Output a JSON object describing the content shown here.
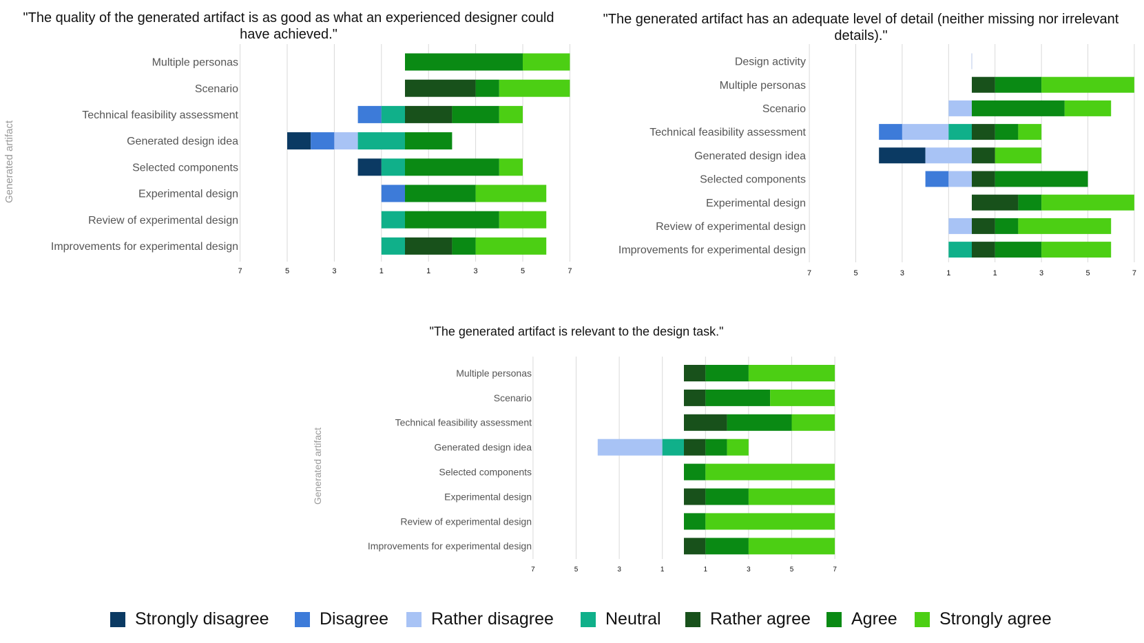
{
  "colors": {
    "Strongly disagree": "#0b3a63",
    "Disagree": "#3d7bd9",
    "Rather disagree": "#a8c3f5",
    "Neutral": "#10b08a",
    "Rather agree": "#18511b",
    "Agree": "#0a8a14",
    "Strongly agree": "#4ccf14"
  },
  "legend": [
    "Strongly disagree",
    "Disagree",
    "Rather disagree",
    "Neutral",
    "Rather agree",
    "Agree",
    "Strongly agree"
  ],
  "chart_data": [
    {
      "type": "bar",
      "orientation": "horizontal",
      "stacking": "diverging",
      "title": "\"The quality of the generated artifact is as good as what an experienced designer could have achieved.\"",
      "title_lines": [
        "\"The quality of the generated artifact is as good as what an experienced designer could",
        "have achieved.\""
      ],
      "ylabel": "Generated artifact",
      "xlabel": "",
      "xticks": [
        "7",
        "5",
        "3",
        "1",
        "1",
        "3",
        "5",
        "7"
      ],
      "xlim": [
        -7,
        7
      ],
      "categories": [
        "Multiple personas",
        "Scenario",
        "Technical feasibility assessment",
        "Generated design idea",
        "Selected components",
        "Experimental design",
        "Review of experimental design",
        "Improvements for experimental design"
      ],
      "series": [
        {
          "name": "Strongly disagree",
          "values": [
            0,
            0,
            0,
            1,
            1,
            0,
            0,
            0
          ]
        },
        {
          "name": "Disagree",
          "values": [
            0,
            0,
            1,
            1,
            0,
            1,
            0,
            0
          ]
        },
        {
          "name": "Rather disagree",
          "values": [
            0,
            0,
            0,
            1,
            0,
            0,
            0,
            0
          ]
        },
        {
          "name": "Neutral",
          "values": [
            0,
            0,
            1,
            2,
            1,
            0,
            1,
            1
          ]
        },
        {
          "name": "Rather agree",
          "values": [
            0,
            3,
            2,
            0,
            0,
            0,
            0,
            2
          ]
        },
        {
          "name": "Agree",
          "values": [
            5,
            1,
            2,
            2,
            4,
            3,
            4,
            1
          ]
        },
        {
          "name": "Strongly agree",
          "values": [
            2,
            3,
            1,
            0,
            1,
            3,
            2,
            3
          ]
        }
      ]
    },
    {
      "type": "bar",
      "orientation": "horizontal",
      "stacking": "diverging",
      "title": "\"The generated artifact has an adequate level of detail (neither missing nor irrelevant details).\"",
      "title_lines": [
        "\"The generated artifact has an adequate level of detail (neither missing nor irrelevant",
        "details).\""
      ],
      "ylabel": "",
      "xlabel": "",
      "xticks": [
        "7",
        "5",
        "3",
        "1",
        "1",
        "3",
        "5",
        "7"
      ],
      "xlim": [
        -7,
        7
      ],
      "categories": [
        "Design activity",
        "Multiple personas",
        "Scenario",
        "Technical feasibility assessment",
        "Generated design idea",
        "Selected components",
        "Experimental design",
        "Review of experimental design",
        "Improvements for experimental design"
      ],
      "series": [
        {
          "name": "Strongly disagree",
          "values": [
            0,
            0,
            0,
            0,
            2,
            0,
            0,
            0,
            0
          ]
        },
        {
          "name": "Disagree",
          "values": [
            0,
            0,
            0,
            1,
            0,
            1,
            0,
            0,
            0
          ]
        },
        {
          "name": "Rather disagree",
          "values": [
            0,
            0,
            1,
            2,
            2,
            1,
            0,
            1,
            0
          ]
        },
        {
          "name": "Neutral",
          "values": [
            0,
            0,
            0,
            1,
            0,
            0,
            0,
            0,
            1
          ]
        },
        {
          "name": "Rather agree",
          "values": [
            0,
            1,
            0,
            1,
            1,
            1,
            2,
            1,
            1
          ]
        },
        {
          "name": "Agree",
          "values": [
            0,
            2,
            4,
            1,
            0,
            4,
            1,
            1,
            2
          ]
        },
        {
          "name": "Strongly agree",
          "values": [
            0,
            4,
            2,
            1,
            2,
            0,
            4,
            4,
            3
          ]
        }
      ]
    },
    {
      "type": "bar",
      "orientation": "horizontal",
      "stacking": "diverging",
      "title": "\"The generated artifact is relevant to the design task.\"",
      "title_lines": [
        "\"The generated artifact is relevant to the design task.\""
      ],
      "ylabel": "Generated artifact",
      "xlabel": "",
      "xticks": [
        "7",
        "5",
        "3",
        "1",
        "1",
        "3",
        "5",
        "7"
      ],
      "xlim": [
        -7,
        7
      ],
      "categories": [
        "Multiple personas",
        "Scenario",
        "Technical feasibility assessment",
        "Generated design idea",
        "Selected components",
        "Experimental design",
        "Review of experimental design",
        "Improvements for experimental design"
      ],
      "series": [
        {
          "name": "Strongly disagree",
          "values": [
            0,
            0,
            0,
            0,
            0,
            0,
            0,
            0
          ]
        },
        {
          "name": "Disagree",
          "values": [
            0,
            0,
            0,
            0,
            0,
            0,
            0,
            0
          ]
        },
        {
          "name": "Rather disagree",
          "values": [
            0,
            0,
            0,
            3,
            0,
            0,
            0,
            0
          ]
        },
        {
          "name": "Neutral",
          "values": [
            0,
            0,
            0,
            1,
            0,
            0,
            0,
            0
          ]
        },
        {
          "name": "Rather agree",
          "values": [
            1,
            1,
            2,
            1,
            0,
            1,
            0,
            1
          ]
        },
        {
          "name": "Agree",
          "values": [
            2,
            3,
            3,
            1,
            1,
            2,
            1,
            2
          ]
        },
        {
          "name": "Strongly agree",
          "values": [
            4,
            3,
            2,
            1,
            6,
            4,
            6,
            4
          ]
        }
      ]
    }
  ]
}
